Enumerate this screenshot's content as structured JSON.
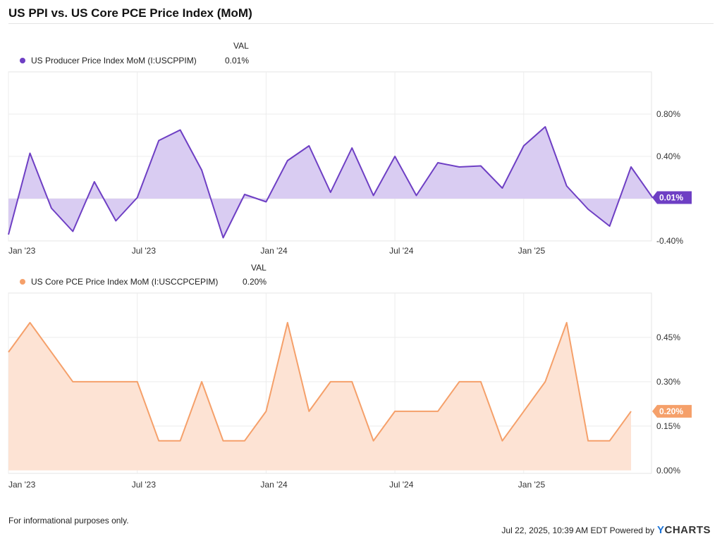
{
  "title": "US PPI vs. US Core PCE Price Index (MoM)",
  "footer": {
    "note": "For informational purposes only.",
    "timestamp": "Jul 22, 2025, 10:39 AM EDT Powered by",
    "brand_y": "Y",
    "brand_rest": "CHARTS"
  },
  "chart_data": [
    {
      "type": "area",
      "legend_header": "VAL",
      "series_name": "US Producer Price Index MoM (I:USCPPIM)",
      "latest_value": "0.01%",
      "latest_badge": "0.01%",
      "color": "#6e3fc4",
      "fill": "#d9ccf2",
      "ylim": [
        -0.4,
        1.2
      ],
      "yticks": [
        -0.4,
        0.4,
        0.8
      ],
      "ytick_labels": [
        "-0.40%",
        "0.40%",
        "0.80%"
      ],
      "gridlines": [
        0.0,
        0.4,
        0.8
      ],
      "xtick_labels": [
        "Jan '23",
        "Jul '23",
        "Jan '24",
        "Jul '24",
        "Jan '25"
      ],
      "xtick_months": [
        0,
        6,
        12,
        18,
        24
      ],
      "x_start_month": 0,
      "x_end_month": 30,
      "x": [
        0,
        1,
        2,
        3,
        4,
        5,
        6,
        7,
        8,
        9,
        10,
        11,
        12,
        13,
        14,
        15,
        16,
        17,
        18,
        19,
        20,
        21,
        22,
        23,
        24,
        25,
        26,
        27,
        28,
        29,
        30
      ],
      "values": [
        -0.34,
        0.43,
        -0.09,
        -0.31,
        0.16,
        -0.21,
        0.01,
        0.55,
        0.65,
        0.27,
        -0.37,
        0.04,
        -0.03,
        0.36,
        0.5,
        0.06,
        0.48,
        0.03,
        0.4,
        0.03,
        0.34,
        0.3,
        0.31,
        0.1,
        0.5,
        0.68,
        0.12,
        -0.1,
        -0.26,
        0.3,
        0.01
      ]
    },
    {
      "type": "area",
      "legend_header": "VAL",
      "series_name": "US Core PCE Price Index MoM (I:USCCPCEPIM)",
      "latest_value": "0.20%",
      "latest_badge": "0.20%",
      "color": "#f5a06a",
      "fill": "#fde3d4",
      "ylim": [
        -0.01,
        0.6
      ],
      "yticks": [
        0.0,
        0.15,
        0.3,
        0.45
      ],
      "ytick_labels": [
        "0.00%",
        "0.15%",
        "0.30%",
        "0.45%"
      ],
      "gridlines": [
        0.15,
        0.3,
        0.45
      ],
      "xtick_labels": [
        "Jan '23",
        "Jul '23",
        "Jan '24",
        "Jul '24",
        "Jan '25"
      ],
      "xtick_months": [
        0,
        6,
        12,
        18,
        24
      ],
      "x_start_month": 0,
      "x_end_month": 30,
      "x": [
        -0.3,
        1,
        2,
        3,
        4,
        5,
        6,
        7,
        8,
        9,
        10,
        11,
        12,
        13,
        14,
        15,
        16,
        17,
        18,
        19,
        20,
        21,
        22,
        23,
        24,
        25,
        26,
        27,
        28,
        29
      ],
      "values": [
        0.4,
        0.5,
        0.4,
        0.3,
        0.3,
        0.3,
        0.3,
        0.1,
        0.1,
        0.3,
        0.1,
        0.1,
        0.2,
        0.5,
        0.2,
        0.3,
        0.3,
        0.1,
        0.2,
        0.2,
        0.2,
        0.3,
        0.3,
        0.1,
        0.2,
        0.3,
        0.5,
        0.1,
        0.1,
        0.2
      ]
    }
  ]
}
